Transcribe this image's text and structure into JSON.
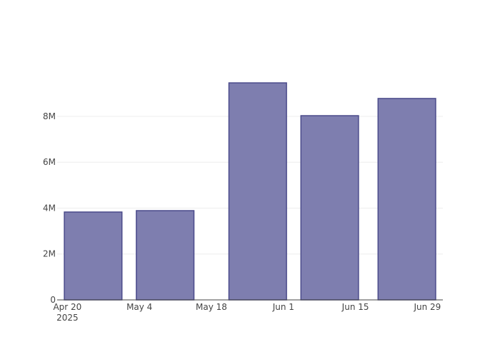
{
  "chart_data": {
    "type": "bar",
    "x": [
      "2025-04-25",
      "2025-05-09",
      "2025-05-27",
      "2025-06-10",
      "2025-06-25"
    ],
    "values": [
      3830000,
      3890000,
      9460000,
      8030000,
      8780000
    ],
    "color": "#7e7eaf",
    "line_color": "#4b4b8b",
    "xlim": [
      "2025-04-18",
      "2025-07-02"
    ],
    "xticks": [
      {
        "value": "2025-04-20",
        "label": "Apr 20"
      },
      {
        "value": "2025-05-04",
        "label": "May 4"
      },
      {
        "value": "2025-05-18",
        "label": "May 18"
      },
      {
        "value": "2025-06-01",
        "label": "Jun 1"
      },
      {
        "value": "2025-06-15",
        "label": "Jun 15"
      },
      {
        "value": "2025-06-29",
        "label": "Jun 29"
      }
    ],
    "x_tick_year": "2025",
    "bar_width_days": 11.2,
    "ylim": [
      0,
      9960000
    ],
    "yticks": [
      0,
      {
        "value": 2000000,
        "label": "2M"
      },
      {
        "value": 4000000,
        "label": "4M"
      },
      {
        "value": 6000000,
        "label": "6M"
      },
      {
        "value": 8000000,
        "label": "8M"
      }
    ],
    "grid": true
  }
}
